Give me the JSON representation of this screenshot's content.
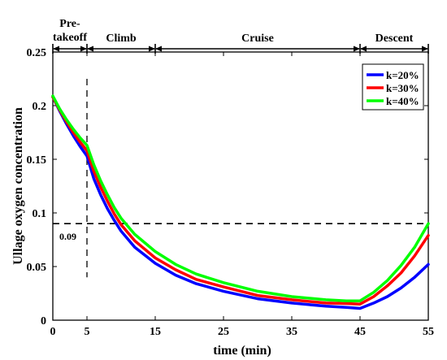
{
  "chart_data": {
    "type": "line",
    "xlabel": "time (min)",
    "ylabel": "Ullage oxygen concentration",
    "xlim": [
      0,
      55
    ],
    "ylim": [
      0,
      0.25
    ],
    "x_ticks": [
      0,
      5,
      15,
      25,
      35,
      45,
      55
    ],
    "y_ticks": [
      0,
      0.05,
      0.1,
      0.15,
      0.2,
      0.25
    ],
    "y_tick_labels": [
      "0",
      "0.05",
      "0.1",
      "0.15",
      "0.2",
      "0.25"
    ],
    "grid": false,
    "legend_position": "top-right",
    "phases": [
      {
        "label_lines": [
          "Pre-",
          "takeoff"
        ],
        "start": 0,
        "end": 5
      },
      {
        "label_lines": [
          "Climb"
        ],
        "start": 5,
        "end": 15
      },
      {
        "label_lines": [
          "Cruise"
        ],
        "start": 15,
        "end": 45
      },
      {
        "label_lines": [
          "Descent"
        ],
        "start": 45,
        "end": 55
      }
    ],
    "reference_lines": {
      "horizontal": {
        "y": 0.09,
        "label": "0.09"
      },
      "vertical": {
        "x": 5,
        "y_top": 0.225
      }
    },
    "series": [
      {
        "name": "k=20%",
        "color": "#0000ff",
        "x": [
          0,
          1,
          2,
          3,
          4,
          5,
          6,
          7,
          8,
          9,
          10,
          12,
          15,
          18,
          21,
          25,
          30,
          35,
          40,
          43,
          45,
          47,
          49,
          51,
          53,
          55
        ],
        "y": [
          0.208,
          0.195,
          0.183,
          0.172,
          0.162,
          0.153,
          0.132,
          0.117,
          0.104,
          0.093,
          0.083,
          0.068,
          0.053,
          0.042,
          0.034,
          0.027,
          0.02,
          0.016,
          0.013,
          0.012,
          0.011,
          0.016,
          0.022,
          0.03,
          0.04,
          0.052
        ]
      },
      {
        "name": "k=30%",
        "color": "#ff0000",
        "x": [
          0,
          1,
          2,
          3,
          4,
          5,
          6,
          7,
          8,
          9,
          10,
          12,
          15,
          18,
          21,
          25,
          30,
          35,
          40,
          43,
          45,
          47,
          49,
          51,
          53,
          55
        ],
        "y": [
          0.208,
          0.196,
          0.185,
          0.175,
          0.166,
          0.158,
          0.139,
          0.124,
          0.111,
          0.099,
          0.089,
          0.074,
          0.058,
          0.047,
          0.038,
          0.031,
          0.023,
          0.019,
          0.016,
          0.0155,
          0.015,
          0.022,
          0.032,
          0.044,
          0.06,
          0.079
        ]
      },
      {
        "name": "k=40%",
        "color": "#00ff00",
        "x": [
          0,
          1,
          2,
          3,
          4,
          5,
          6,
          7,
          8,
          9,
          10,
          12,
          15,
          18,
          21,
          25,
          30,
          35,
          40,
          43,
          45,
          47,
          49,
          51,
          53,
          55
        ],
        "y": [
          0.209,
          0.197,
          0.187,
          0.178,
          0.17,
          0.163,
          0.145,
          0.13,
          0.117,
          0.105,
          0.095,
          0.08,
          0.064,
          0.052,
          0.043,
          0.035,
          0.027,
          0.022,
          0.019,
          0.018,
          0.018,
          0.026,
          0.037,
          0.051,
          0.068,
          0.09
        ]
      }
    ]
  }
}
